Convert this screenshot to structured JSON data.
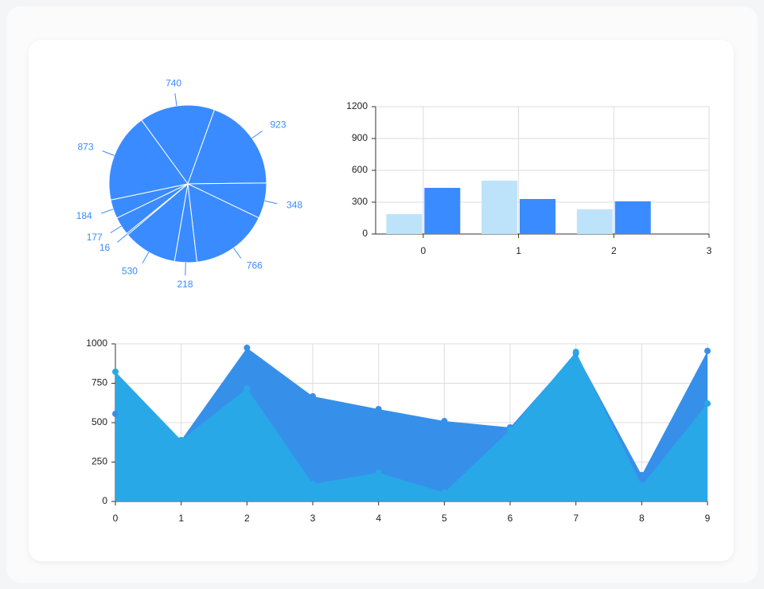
{
  "chart_data": [
    {
      "type": "pie",
      "values": [
        740,
        923,
        348,
        766,
        218,
        530,
        16,
        177,
        184,
        873
      ],
      "color": "#3a8bff"
    },
    {
      "type": "bar",
      "x": [
        0,
        1,
        2
      ],
      "series": [
        {
          "color": "#bde3fb",
          "values": [
            188,
            503,
            233
          ]
        },
        {
          "color": "#3a8bff",
          "values": [
            435,
            330,
            308
          ]
        }
      ],
      "xlim": [
        -0.5,
        3
      ],
      "xticks": [
        0,
        1,
        2,
        3
      ],
      "ylim": [
        0,
        1200
      ],
      "yticks": [
        0,
        300,
        600,
        900,
        1200
      ],
      "grid": true
    },
    {
      "type": "area",
      "x": [
        0,
        1,
        2,
        3,
        4,
        5,
        6,
        7,
        8,
        9
      ],
      "series": [
        {
          "color": "#3690ea",
          "values": [
            556,
            389,
            975,
            667,
            586,
            510,
            470,
            940,
            167,
            955
          ]
        },
        {
          "color": "#29a8e8",
          "values": [
            823,
            389,
            717,
            111,
            182,
            56,
            455,
            949,
            101,
            621
          ]
        }
      ],
      "xlim": [
        0,
        9
      ],
      "xticks": [
        0,
        1,
        2,
        3,
        4,
        5,
        6,
        7,
        8,
        9
      ],
      "ylim": [
        0,
        1000
      ],
      "yticks": [
        0,
        250,
        500,
        750,
        1000
      ],
      "grid": true
    }
  ]
}
